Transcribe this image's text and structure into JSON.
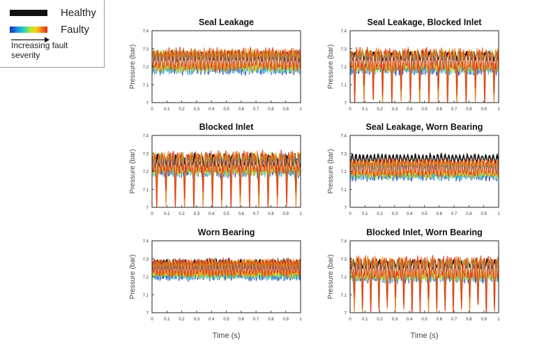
{
  "legend": {
    "healthy_label": "Healthy",
    "faulty_label": "Faulty",
    "severity_label": "Increasing fault severity",
    "healthy_color": "#111111",
    "faulty_colors": [
      "#1a2fb0",
      "#1f8fe0",
      "#2bd0c0",
      "#b8e830",
      "#f5d020",
      "#f07a20",
      "#e02a10"
    ]
  },
  "chart_data": [
    {
      "type": "line",
      "title": "Seal Leakage",
      "xlabel": "",
      "ylabel": "Pressure (bar)",
      "xlim": [
        0,
        1
      ],
      "ylim": [
        7,
        7.4
      ],
      "xticks": [
        "0",
        "0.1",
        "0.2",
        "0.3",
        "0.4",
        "0.5",
        "0.6",
        "0.7",
        "0.8",
        "0.9",
        "1"
      ],
      "yticks": [
        "7",
        "7.1",
        "7.2",
        "7.3",
        "7.4"
      ],
      "healthy_baseline": 7.26,
      "healthy_amplitude": 0.02,
      "faulty_baseline": 7.23,
      "faulty_amplitude": 0.05,
      "oscillations": 40,
      "spike_count": 0,
      "spike_min": 7.15
    },
    {
      "type": "line",
      "title": "Seal Leakage, Blocked Inlet",
      "xlabel": "",
      "ylabel": "Pressure (bar)",
      "xlim": [
        0,
        1
      ],
      "ylim": [
        7,
        7.4
      ],
      "xticks": [
        "0",
        "0.1",
        "0.2",
        "0.3",
        "0.4",
        "0.5",
        "0.6",
        "0.7",
        "0.8",
        "0.9",
        "1"
      ],
      "yticks": [
        "7",
        "7.1",
        "7.2",
        "7.3",
        "7.4"
      ],
      "healthy_baseline": 7.26,
      "healthy_amplitude": 0.02,
      "faulty_baseline": 7.23,
      "faulty_amplitude": 0.05,
      "oscillations": 40,
      "spike_count": 16,
      "spike_min": 7.0
    },
    {
      "type": "line",
      "title": "Blocked Inlet",
      "xlabel": "",
      "ylabel": "Pressure (bar)",
      "xlim": [
        0,
        1
      ],
      "ylim": [
        7,
        7.4
      ],
      "xticks": [
        "0",
        "0.1",
        "0.2",
        "0.3",
        "0.4",
        "0.5",
        "0.6",
        "0.7",
        "0.8",
        "0.9",
        "1"
      ],
      "yticks": [
        "7",
        "7.1",
        "7.2",
        "7.3",
        "7.4"
      ],
      "healthy_baseline": 7.26,
      "healthy_amplitude": 0.03,
      "faulty_baseline": 7.24,
      "faulty_amplitude": 0.05,
      "oscillations": 40,
      "spike_count": 16,
      "spike_min": 7.0
    },
    {
      "type": "line",
      "title": "Seal Leakage, Worn Bearing",
      "xlabel": "",
      "ylabel": "Pressure (bar)",
      "xlim": [
        0,
        1
      ],
      "ylim": [
        7,
        7.4
      ],
      "xticks": [
        "0",
        "0.1",
        "0.2",
        "0.3",
        "0.4",
        "0.5",
        "0.6",
        "0.7",
        "0.8",
        "0.9",
        "1"
      ],
      "yticks": [
        "7",
        "7.1",
        "7.2",
        "7.3",
        "7.4"
      ],
      "healthy_baseline": 7.27,
      "healthy_amplitude": 0.02,
      "faulty_baseline": 7.21,
      "faulty_amplitude": 0.04,
      "oscillations": 40,
      "spike_count": 0,
      "spike_min": 7.15
    },
    {
      "type": "line",
      "title": "Worn Bearing",
      "xlabel": "Time (s)",
      "ylabel": "Pressure (bar)",
      "xlim": [
        0,
        1
      ],
      "ylim": [
        7,
        7.4
      ],
      "xticks": [
        "0",
        "0.1",
        "0.2",
        "0.3",
        "0.4",
        "0.5",
        "0.6",
        "0.7",
        "0.8",
        "0.9",
        "1"
      ],
      "yticks": [
        "7",
        "7.1",
        "7.2",
        "7.3",
        "7.4"
      ],
      "healthy_baseline": 7.27,
      "healthy_amplitude": 0.02,
      "faulty_baseline": 7.24,
      "faulty_amplitude": 0.04,
      "oscillations": 48,
      "spike_count": 0,
      "spike_min": 7.18
    },
    {
      "type": "line",
      "title": "Blocked Inlet, Worn Bearing",
      "xlabel": "Time (s)",
      "ylabel": "Pressure (bar)",
      "xlim": [
        0,
        1
      ],
      "ylim": [
        7,
        7.4
      ],
      "xticks": [
        "0",
        "0.1",
        "0.2",
        "0.3",
        "0.4",
        "0.5",
        "0.6",
        "0.7",
        "0.8",
        "0.9",
        "1"
      ],
      "yticks": [
        "7",
        "7.1",
        "7.2",
        "7.3",
        "7.4"
      ],
      "healthy_baseline": 7.27,
      "healthy_amplitude": 0.02,
      "faulty_baseline": 7.24,
      "faulty_amplitude": 0.05,
      "oscillations": 40,
      "spike_count": 18,
      "spike_min": 7.0
    }
  ]
}
